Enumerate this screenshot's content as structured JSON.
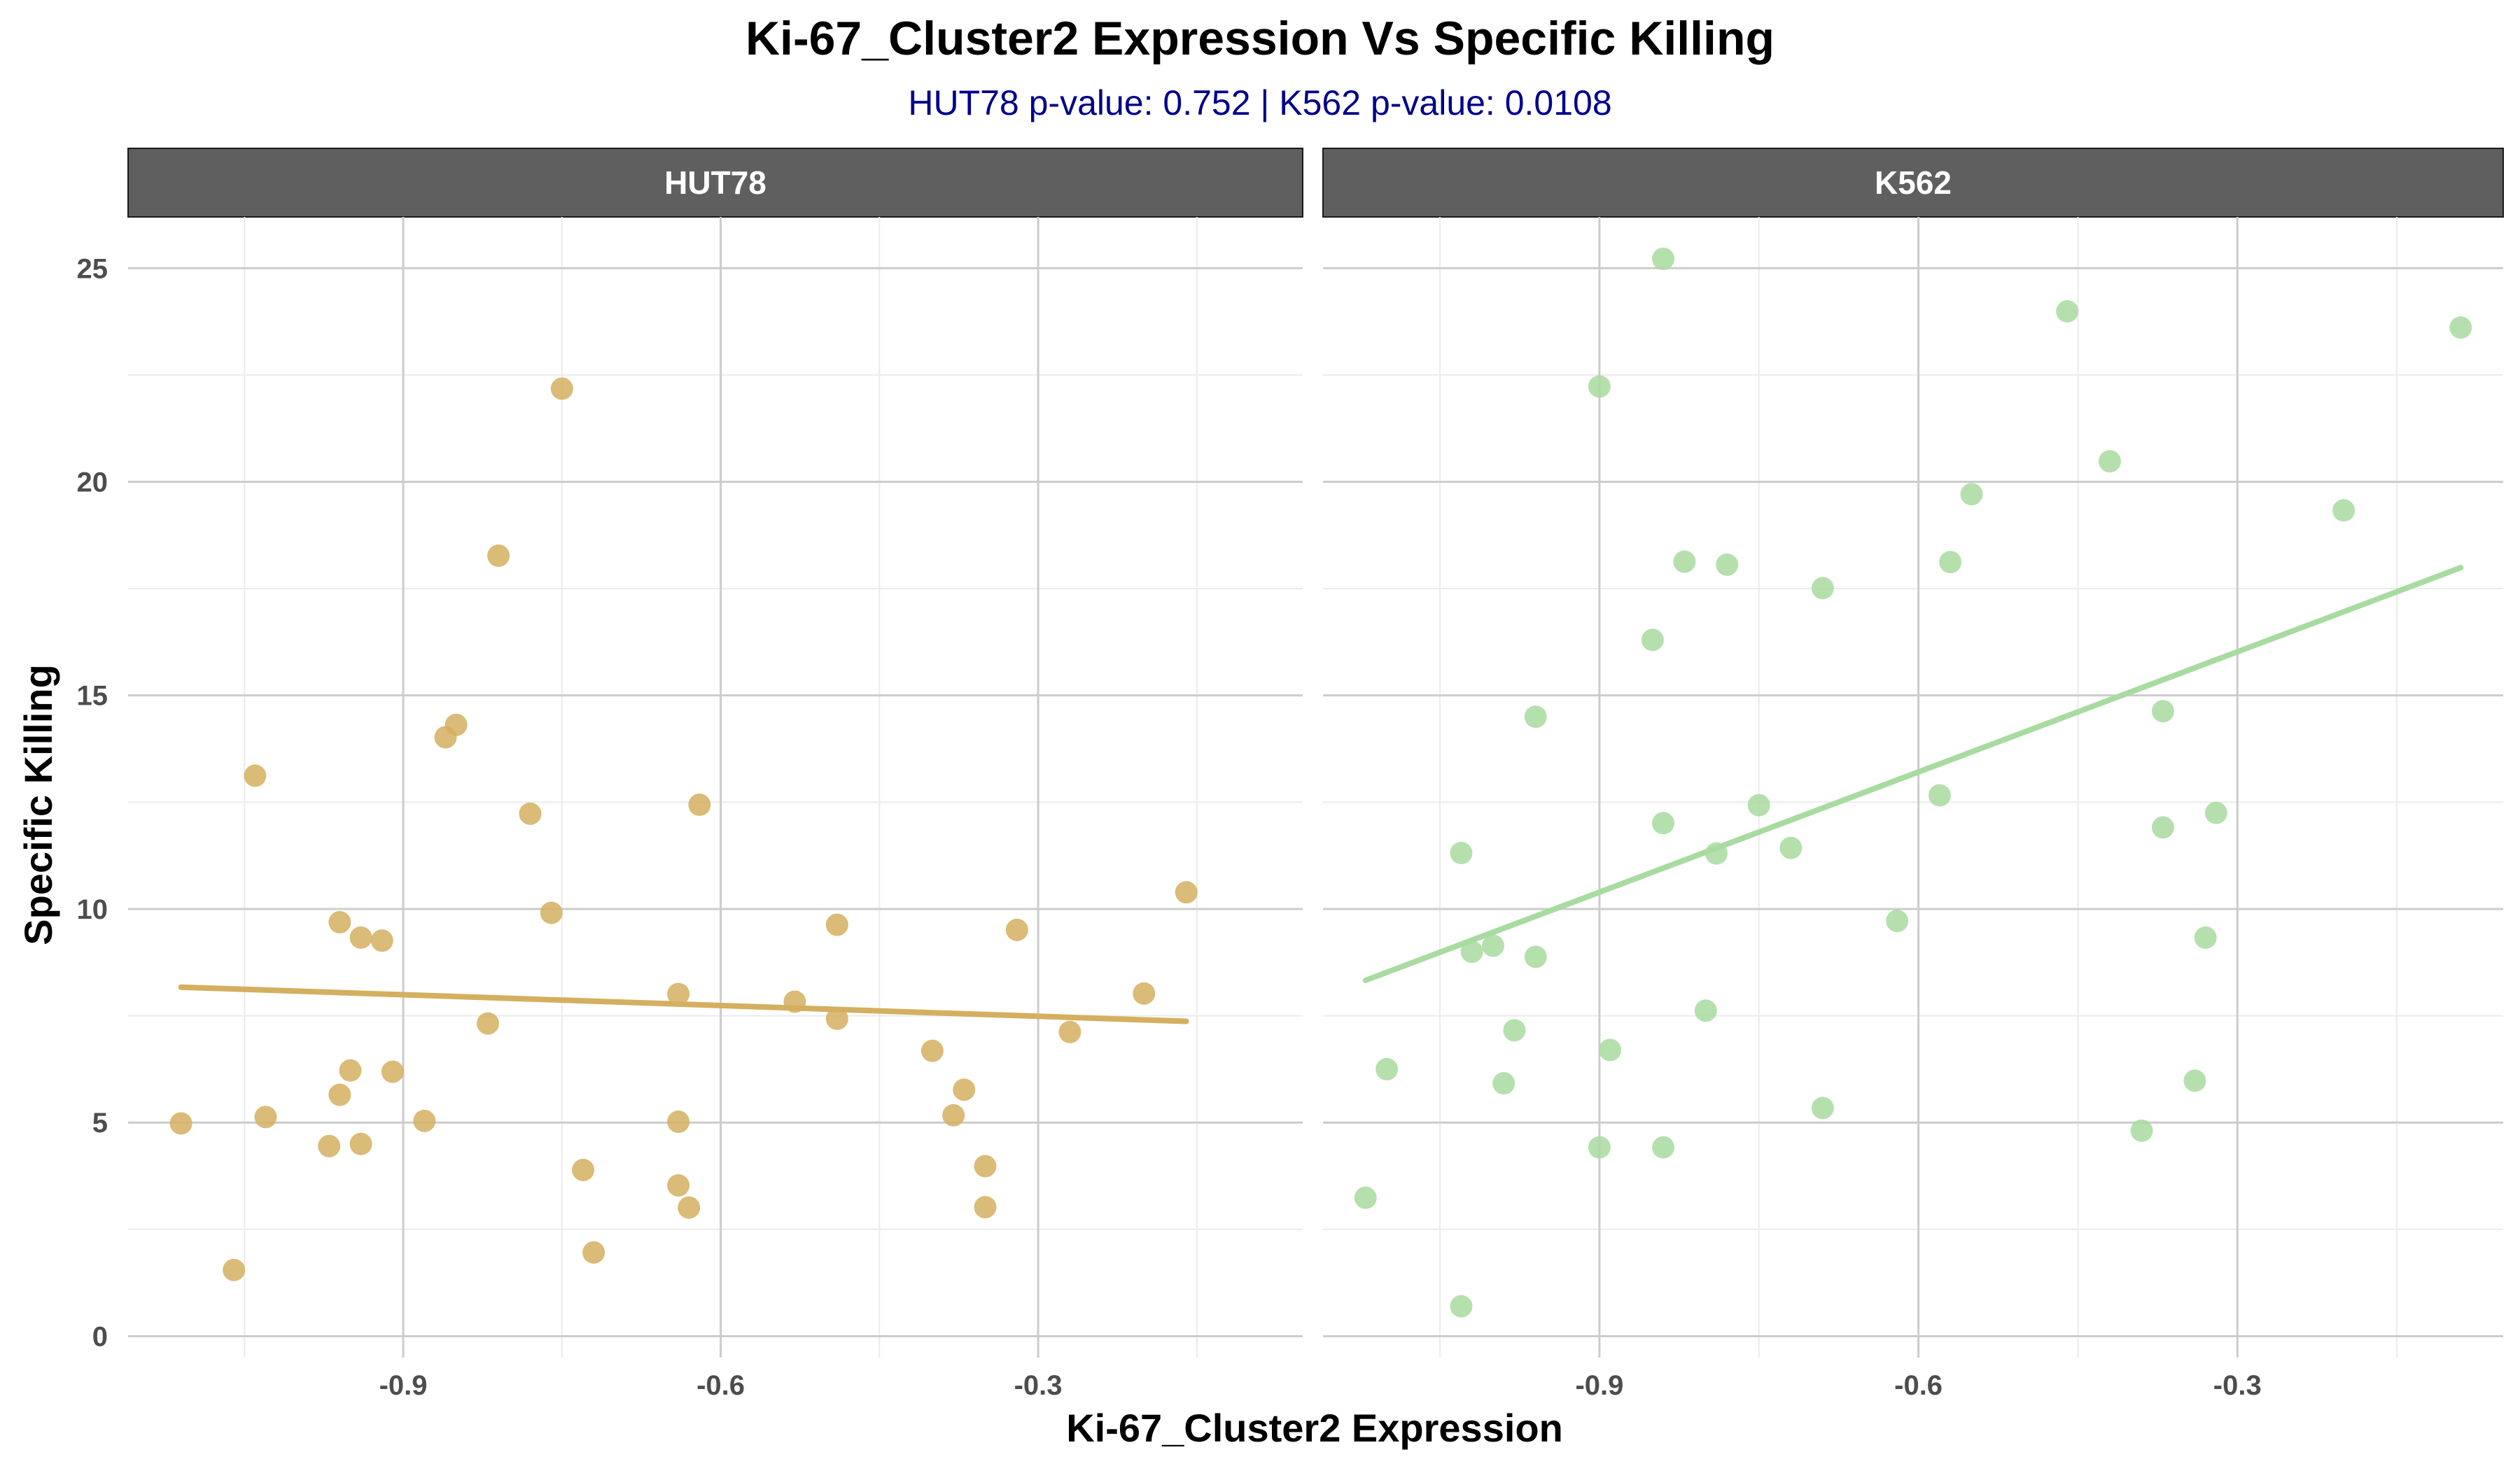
{
  "chart_data": {
    "type": "scatter",
    "title": "Ki-67_Cluster2 Expression Vs Specific Killing",
    "subtitle": "HUT78 p-value: 0.752  | K562 p-value: 0.0108",
    "subtitle_color": "#00008B",
    "xlabel": "Ki-67_Cluster2 Expression",
    "ylabel": "Specific Killing",
    "xlim": [
      -1.16,
      -0.05
    ],
    "ylim": [
      -0.5,
      26.2
    ],
    "x_ticks": [
      -0.9,
      -0.6,
      -0.3
    ],
    "x_tick_labels": [
      "-0.9",
      "-0.6",
      "-0.3"
    ],
    "y_ticks": [
      0,
      5,
      10,
      15,
      20,
      25
    ],
    "y_tick_labels": [
      "0",
      "5",
      "10",
      "15",
      "20",
      "25"
    ],
    "grid": true,
    "panels": [
      {
        "name": "HUT78",
        "color": "#D4AF5F",
        "fit_line": {
          "x": [
            -1.11,
            -0.16
          ],
          "y": [
            8.17,
            7.37
          ]
        },
        "points": [
          {
            "x": -1.11,
            "y": 4.98
          },
          {
            "x": -1.06,
            "y": 1.55
          },
          {
            "x": -1.04,
            "y": 13.12
          },
          {
            "x": -1.03,
            "y": 5.13
          },
          {
            "x": -0.97,
            "y": 4.45
          },
          {
            "x": -0.96,
            "y": 9.69
          },
          {
            "x": -0.96,
            "y": 5.65
          },
          {
            "x": -0.95,
            "y": 6.22
          },
          {
            "x": -0.94,
            "y": 9.33
          },
          {
            "x": -0.94,
            "y": 4.5
          },
          {
            "x": -0.92,
            "y": 9.26
          },
          {
            "x": -0.91,
            "y": 6.19
          },
          {
            "x": -0.88,
            "y": 5.04
          },
          {
            "x": -0.86,
            "y": 14.02
          },
          {
            "x": -0.85,
            "y": 14.31
          },
          {
            "x": -0.82,
            "y": 7.32
          },
          {
            "x": -0.81,
            "y": 18.27
          },
          {
            "x": -0.78,
            "y": 12.23
          },
          {
            "x": -0.76,
            "y": 9.91
          },
          {
            "x": -0.75,
            "y": 22.18
          },
          {
            "x": -0.73,
            "y": 3.89
          },
          {
            "x": -0.72,
            "y": 1.96
          },
          {
            "x": -0.64,
            "y": 8.01
          },
          {
            "x": -0.64,
            "y": 5.02
          },
          {
            "x": -0.64,
            "y": 3.53
          },
          {
            "x": -0.63,
            "y": 3.01
          },
          {
            "x": -0.62,
            "y": 12.44
          },
          {
            "x": -0.53,
            "y": 7.83
          },
          {
            "x": -0.49,
            "y": 9.63
          },
          {
            "x": -0.49,
            "y": 7.43
          },
          {
            "x": -0.4,
            "y": 6.68
          },
          {
            "x": -0.38,
            "y": 5.17
          },
          {
            "x": -0.37,
            "y": 5.77
          },
          {
            "x": -0.35,
            "y": 3.98
          },
          {
            "x": -0.35,
            "y": 3.02
          },
          {
            "x": -0.32,
            "y": 9.51
          },
          {
            "x": -0.27,
            "y": 7.12
          },
          {
            "x": -0.2,
            "y": 8.02
          },
          {
            "x": -0.16,
            "y": 10.39
          }
        ]
      },
      {
        "name": "K562",
        "color": "#A8DBA0",
        "fit_line": {
          "x": [
            -1.12,
            -0.09
          ],
          "y": [
            8.33,
            17.99
          ]
        },
        "points": [
          {
            "x": -1.12,
            "y": 3.24
          },
          {
            "x": -1.1,
            "y": 6.25
          },
          {
            "x": -1.03,
            "y": 11.31
          },
          {
            "x": -1.03,
            "y": 0.7
          },
          {
            "x": -1.02,
            "y": 9.0
          },
          {
            "x": -1.0,
            "y": 9.14
          },
          {
            "x": -0.99,
            "y": 5.92
          },
          {
            "x": -0.98,
            "y": 7.16
          },
          {
            "x": -0.96,
            "y": 14.5
          },
          {
            "x": -0.96,
            "y": 8.88
          },
          {
            "x": -0.9,
            "y": 22.23
          },
          {
            "x": -0.9,
            "y": 4.42
          },
          {
            "x": -0.89,
            "y": 6.7
          },
          {
            "x": -0.85,
            "y": 16.3
          },
          {
            "x": -0.84,
            "y": 25.22
          },
          {
            "x": -0.84,
            "y": 12.01
          },
          {
            "x": -0.84,
            "y": 4.42
          },
          {
            "x": -0.82,
            "y": 18.13
          },
          {
            "x": -0.8,
            "y": 7.62
          },
          {
            "x": -0.79,
            "y": 11.3
          },
          {
            "x": -0.78,
            "y": 18.06
          },
          {
            "x": -0.75,
            "y": 12.43
          },
          {
            "x": -0.72,
            "y": 11.43
          },
          {
            "x": -0.69,
            "y": 17.51
          },
          {
            "x": -0.69,
            "y": 5.34
          },
          {
            "x": -0.62,
            "y": 9.72
          },
          {
            "x": -0.58,
            "y": 12.66
          },
          {
            "x": -0.57,
            "y": 18.12
          },
          {
            "x": -0.55,
            "y": 19.71
          },
          {
            "x": -0.46,
            "y": 23.99
          },
          {
            "x": -0.42,
            "y": 20.48
          },
          {
            "x": -0.39,
            "y": 4.81
          },
          {
            "x": -0.37,
            "y": 14.63
          },
          {
            "x": -0.37,
            "y": 11.91
          },
          {
            "x": -0.34,
            "y": 5.98
          },
          {
            "x": -0.33,
            "y": 9.33
          },
          {
            "x": -0.32,
            "y": 12.25
          },
          {
            "x": -0.2,
            "y": 19.33
          },
          {
            "x": -0.09,
            "y": 23.61
          }
        ]
      }
    ]
  }
}
